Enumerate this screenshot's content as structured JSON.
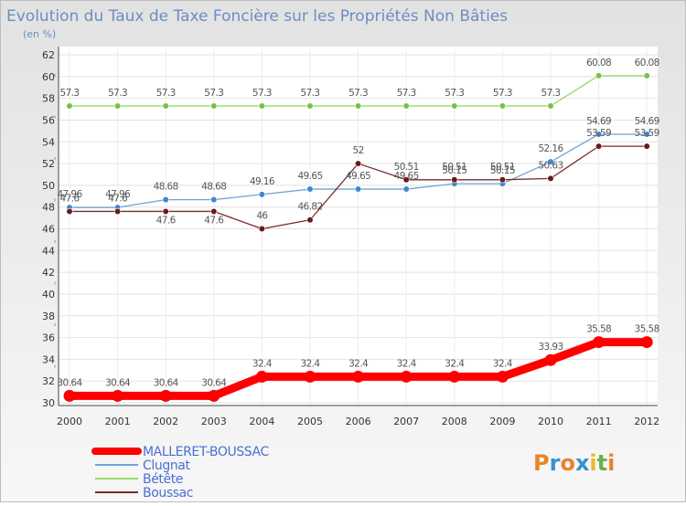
{
  "chart_data": {
    "type": "line",
    "title": "Evolution du Taux de Taxe Foncière sur les Propriétés Non Bâties",
    "subtitle": "(en %)",
    "xlabel": "",
    "ylabel": "",
    "ylim": [
      30,
      62
    ],
    "ytick_step": 2,
    "grid": true,
    "legend_position": "bottom-left",
    "categories": [
      "2000",
      "2001",
      "2002",
      "2003",
      "2004",
      "2005",
      "2006",
      "2007",
      "2008",
      "2009",
      "2010",
      "2011",
      "2012"
    ],
    "series": [
      {
        "name": "MALLERET-BOUSSAC",
        "color": "#ff0000",
        "values": [
          30.64,
          30.64,
          30.64,
          30.64,
          32.4,
          32.4,
          32.4,
          32.4,
          32.4,
          32.4,
          33.93,
          35.58,
          35.58
        ],
        "labels": [
          "30.64",
          "30.64",
          "30.64",
          "30.64",
          "32.4",
          "32.4",
          "32.4",
          "32.4",
          "32.4",
          "32.4",
          "33.93",
          "35.58",
          "35.58"
        ],
        "label_dy": [
          -11,
          -11,
          -11,
          -11,
          -11,
          -11,
          -11,
          -11,
          -11,
          -11,
          -11,
          -11,
          -11
        ]
      },
      {
        "name": "Clugnat",
        "color": "#6fa3d6",
        "marker_color": "#3f87d0",
        "values": [
          47.96,
          47.96,
          48.68,
          48.68,
          49.16,
          49.65,
          49.65,
          49.65,
          50.15,
          50.15,
          52.16,
          54.69,
          54.69
        ],
        "labels": [
          "47.96",
          "47.96",
          "48.68",
          "48.68",
          "49.16",
          "49.65",
          "49.65",
          "49.65",
          "50.15",
          "50.15",
          "52.16",
          "54.69",
          "54.69"
        ],
        "label_dy": [
          -11,
          -11,
          -11,
          -11,
          -11,
          -11,
          -11,
          -11,
          -11,
          -11,
          -11,
          -11,
          -11
        ]
      },
      {
        "name": "Bétête",
        "color": "#9ad86a",
        "marker_color": "#78c244",
        "values": [
          57.3,
          57.3,
          57.3,
          57.3,
          57.3,
          57.3,
          57.3,
          57.3,
          57.3,
          57.3,
          57.3,
          60.08,
          60.08
        ],
        "labels": [
          "57.3",
          "57.3",
          "57.3",
          "57.3",
          "57.3",
          "57.3",
          "57.3",
          "57.3",
          "57.3",
          "57.3",
          "57.3",
          "60.08",
          "60.08"
        ],
        "label_dy": [
          -11,
          -11,
          -11,
          -11,
          -11,
          -11,
          -11,
          -11,
          -11,
          -11,
          -11,
          -11,
          -11
        ]
      },
      {
        "name": "Boussac",
        "color": "#7a2a2a",
        "marker_color": "#6a1a1a",
        "values": [
          47.6,
          47.6,
          47.6,
          47.6,
          46.0,
          46.82,
          52.0,
          50.51,
          50.51,
          50.51,
          50.63,
          53.59,
          53.59
        ],
        "labels": [
          "47.6",
          "47.6",
          "47.6",
          "47.6",
          "46",
          "46.82",
          "52",
          "50.51",
          "50.51",
          "50.51",
          "50.63",
          "53.59",
          "53.59"
        ],
        "label_dy": [
          -11,
          -11,
          13,
          13,
          -11,
          -11,
          -11,
          -11,
          -11,
          -11,
          -11,
          -11,
          -11
        ]
      }
    ]
  },
  "legend": {
    "items": [
      {
        "name": "MALLERET-BOUSSAC",
        "color": "#ff0000",
        "thick": true
      },
      {
        "name": "Clugnat",
        "color": "#6fa3d6",
        "thick": false
      },
      {
        "name": "Bétête",
        "color": "#9ad86a",
        "thick": false
      },
      {
        "name": "Boussac",
        "color": "#7a2a2a",
        "thick": false
      }
    ]
  },
  "logo": {
    "text": "Proxiti",
    "letters": [
      "P",
      "r",
      "o",
      "x",
      "i",
      "t",
      "i"
    ],
    "colors": [
      "#e8842a",
      "#3a8fd0",
      "#e8842a",
      "#3a8fd0",
      "#e8b92a",
      "#6ab04c",
      "#e8842a"
    ]
  }
}
